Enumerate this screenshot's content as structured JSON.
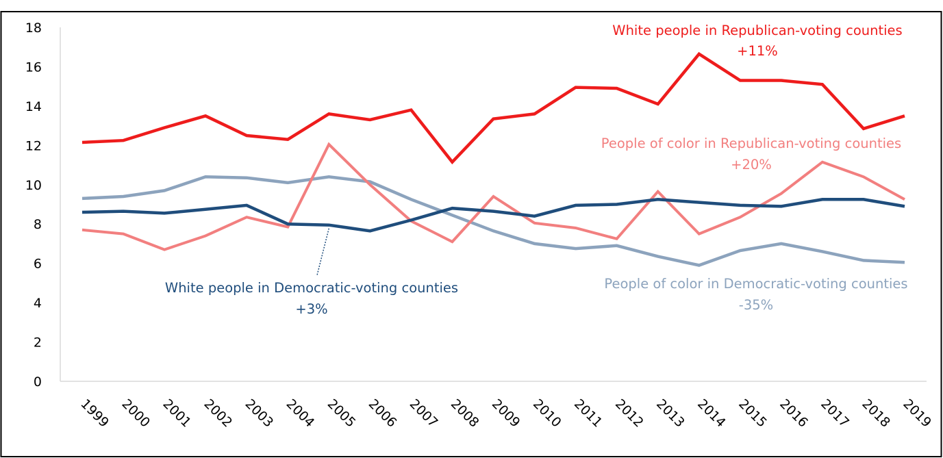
{
  "chart_data": {
    "type": "line",
    "title": "",
    "xlabel": "",
    "ylabel": "",
    "ylim": [
      0,
      18
    ],
    "yticks": [
      0,
      2,
      4,
      6,
      8,
      10,
      12,
      14,
      16,
      18
    ],
    "ytick_labels": [
      "0",
      "2",
      "4",
      "6",
      "8",
      "10",
      "12",
      "14",
      "16",
      "18"
    ],
    "categories": [
      "1999",
      "2000",
      "2001",
      "2002",
      "2003",
      "2004",
      "2005",
      "2006",
      "2007",
      "2008",
      "2009",
      "2010",
      "2011",
      "2012",
      "2013",
      "2014",
      "2015",
      "2016",
      "2017",
      "2018",
      "2019"
    ],
    "grid": false,
    "legend": "none (direct labels)",
    "series": [
      {
        "name": "White people in Republican-voting counties",
        "change": "+11%",
        "color": "#ee1c1c",
        "values": [
          12.15,
          12.25,
          12.9,
          13.5,
          12.5,
          12.3,
          13.6,
          13.3,
          13.8,
          11.15,
          13.35,
          13.6,
          14.95,
          14.9,
          14.1,
          16.65,
          15.3,
          15.3,
          15.1,
          12.85,
          13.5
        ]
      },
      {
        "name": "People of color in Republican-voting counties",
        "change": "+20%",
        "color": "#f27f7f",
        "values": [
          7.7,
          7.5,
          6.7,
          7.4,
          8.35,
          7.85,
          12.05,
          10.0,
          8.15,
          7.1,
          9.4,
          8.05,
          7.8,
          7.25,
          9.65,
          7.5,
          8.35,
          9.55,
          11.15,
          10.4,
          9.25
        ]
      },
      {
        "name": "White people in Democratic-voting counties",
        "change": "+3%",
        "color": "#1f4d7c",
        "values": [
          8.6,
          8.65,
          8.55,
          8.75,
          8.95,
          8.0,
          7.95,
          7.65,
          8.2,
          8.8,
          8.65,
          8.4,
          8.95,
          9.0,
          9.25,
          9.1,
          8.95,
          8.9,
          9.25,
          9.25,
          8.9
        ]
      },
      {
        "name": "People of color in Democratic-voting counties",
        "change": "-35%",
        "color": "#8ca3bd",
        "values": [
          9.3,
          9.4,
          9.7,
          10.4,
          10.35,
          10.1,
          10.4,
          10.15,
          9.25,
          8.45,
          7.65,
          7.0,
          6.75,
          6.9,
          6.35,
          5.9,
          6.65,
          7.0,
          6.6,
          6.15,
          6.05
        ]
      }
    ]
  }
}
